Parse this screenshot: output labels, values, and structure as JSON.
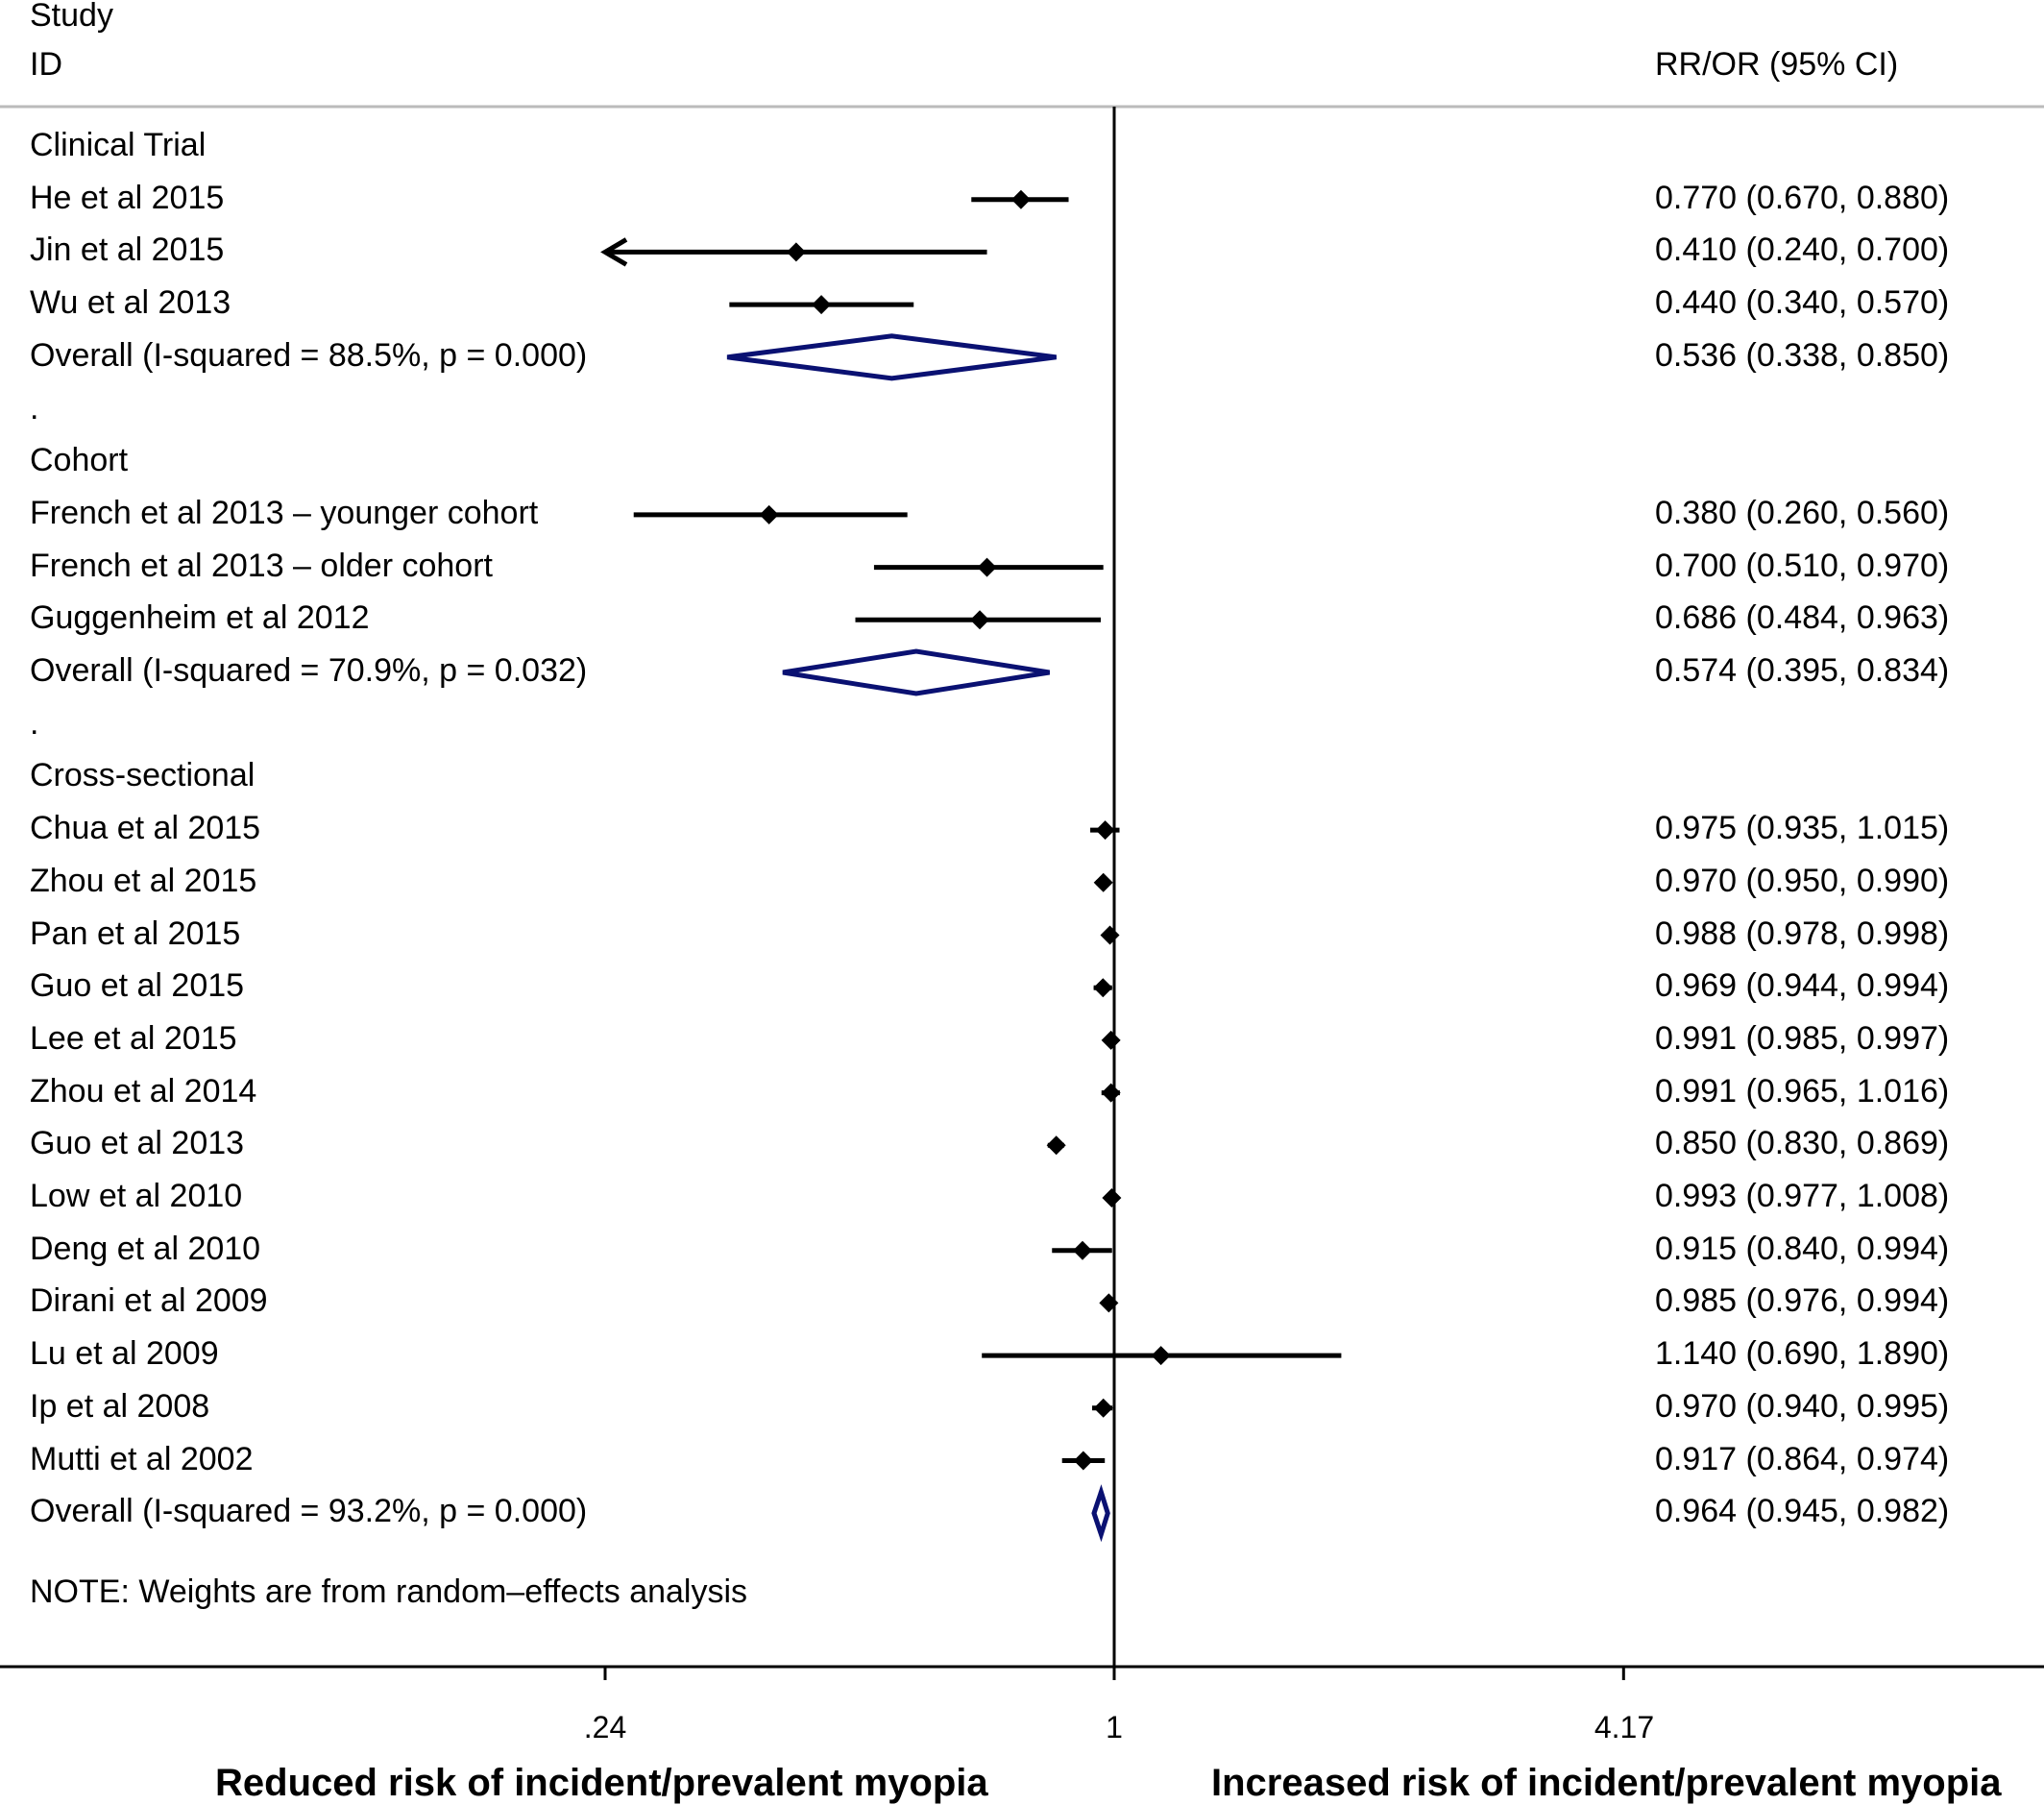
{
  "header": {
    "study": "Study",
    "id": "ID",
    "effect": "RR/OR (95% CI)"
  },
  "colors": {
    "marker": "#000000",
    "pooled_diamond": "#0a1172",
    "rule": "#bbbbbb",
    "axis": "#000000"
  },
  "chart_data": {
    "type": "forest",
    "x_scale": "log",
    "x_ticks": [
      {
        "value": 0.24,
        "label": ".24"
      },
      {
        "value": 1,
        "label": "1"
      },
      {
        "value": 4.17,
        "label": "4.17"
      }
    ],
    "null_line": 1,
    "xlabel_left": "Reduced risk of incident/prevalent myopia",
    "xlabel_right": "Increased risk of incident/prevalent myopia",
    "note": "NOTE: Weights are from random–effects analysis",
    "rows": [
      {
        "kind": "group",
        "label": "Clinical Trial"
      },
      {
        "kind": "study",
        "label": "He et al 2015",
        "est": 0.77,
        "lo": 0.67,
        "hi": 0.88,
        "text": "0.770 (0.670, 0.880)"
      },
      {
        "kind": "study",
        "label": "Jin et al 2015",
        "est": 0.41,
        "lo": 0.24,
        "hi": 0.7,
        "text": "0.410 (0.240, 0.700)",
        "clipped_low": true
      },
      {
        "kind": "study",
        "label": "Wu et al 2013",
        "est": 0.44,
        "lo": 0.34,
        "hi": 0.57,
        "text": "0.440 (0.340, 0.570)"
      },
      {
        "kind": "overall",
        "label": "Overall  (I-squared = 88.5%, p = 0.000)",
        "est": 0.536,
        "lo": 0.338,
        "hi": 0.85,
        "text": "0.536 (0.338, 0.850)"
      },
      {
        "kind": "spacer",
        "label": "."
      },
      {
        "kind": "group",
        "label": "Cohort"
      },
      {
        "kind": "study",
        "label": "French et al 2013 – younger cohort",
        "est": 0.38,
        "lo": 0.26,
        "hi": 0.56,
        "text": "0.380 (0.260, 0.560)"
      },
      {
        "kind": "study",
        "label": "French et al 2013 – older cohort",
        "est": 0.7,
        "lo": 0.51,
        "hi": 0.97,
        "text": "0.700 (0.510, 0.970)"
      },
      {
        "kind": "study",
        "label": "Guggenheim et al 2012",
        "est": 0.686,
        "lo": 0.484,
        "hi": 0.963,
        "text": "0.686 (0.484, 0.963)"
      },
      {
        "kind": "overall",
        "label": "Overall  (I-squared = 70.9%, p = 0.032)",
        "est": 0.574,
        "lo": 0.395,
        "hi": 0.834,
        "text": "0.574 (0.395, 0.834)"
      },
      {
        "kind": "spacer",
        "label": "."
      },
      {
        "kind": "group",
        "label": "Cross-sectional"
      },
      {
        "kind": "study",
        "label": "Chua et al 2015",
        "est": 0.975,
        "lo": 0.935,
        "hi": 1.015,
        "text": "0.975 (0.935, 1.015)"
      },
      {
        "kind": "study",
        "label": "Zhou et al 2015",
        "est": 0.97,
        "lo": 0.95,
        "hi": 0.99,
        "text": "0.970 (0.950, 0.990)"
      },
      {
        "kind": "study",
        "label": "Pan et al 2015",
        "est": 0.988,
        "lo": 0.978,
        "hi": 0.998,
        "text": "0.988 (0.978, 0.998)"
      },
      {
        "kind": "study",
        "label": "Guo et al 2015",
        "est": 0.969,
        "lo": 0.944,
        "hi": 0.994,
        "text": "0.969 (0.944, 0.994)"
      },
      {
        "kind": "study",
        "label": "Lee et al 2015",
        "est": 0.991,
        "lo": 0.985,
        "hi": 0.997,
        "text": "0.991 (0.985, 0.997)"
      },
      {
        "kind": "study",
        "label": "Zhou et al 2014",
        "est": 0.991,
        "lo": 0.965,
        "hi": 1.016,
        "text": "0.991 (0.965, 1.016)"
      },
      {
        "kind": "study",
        "label": "Guo et al 2013",
        "est": 0.85,
        "lo": 0.83,
        "hi": 0.869,
        "text": "0.850 (0.830, 0.869)"
      },
      {
        "kind": "study",
        "label": "Low et al 2010",
        "est": 0.993,
        "lo": 0.977,
        "hi": 1.008,
        "text": "0.993 (0.977, 1.008)"
      },
      {
        "kind": "study",
        "label": "Deng et al 2010",
        "est": 0.915,
        "lo": 0.84,
        "hi": 0.994,
        "text": "0.915 (0.840, 0.994)"
      },
      {
        "kind": "study",
        "label": "Dirani et al 2009",
        "est": 0.985,
        "lo": 0.976,
        "hi": 0.994,
        "text": "0.985 (0.976, 0.994)"
      },
      {
        "kind": "study",
        "label": "Lu et al 2009",
        "est": 1.14,
        "lo": 0.69,
        "hi": 1.89,
        "text": "1.140 (0.690, 1.890)"
      },
      {
        "kind": "study",
        "label": "Ip et al 2008",
        "est": 0.97,
        "lo": 0.94,
        "hi": 0.995,
        "text": "0.970 (0.940, 0.995)"
      },
      {
        "kind": "study",
        "label": "Mutti et al 2002",
        "est": 0.917,
        "lo": 0.864,
        "hi": 0.974,
        "text": "0.917 (0.864, 0.974)"
      },
      {
        "kind": "overall",
        "label": "Overall  (I-squared = 93.2%, p = 0.000)",
        "est": 0.964,
        "lo": 0.945,
        "hi": 0.982,
        "text": "0.964 (0.945, 0.982)"
      }
    ]
  }
}
